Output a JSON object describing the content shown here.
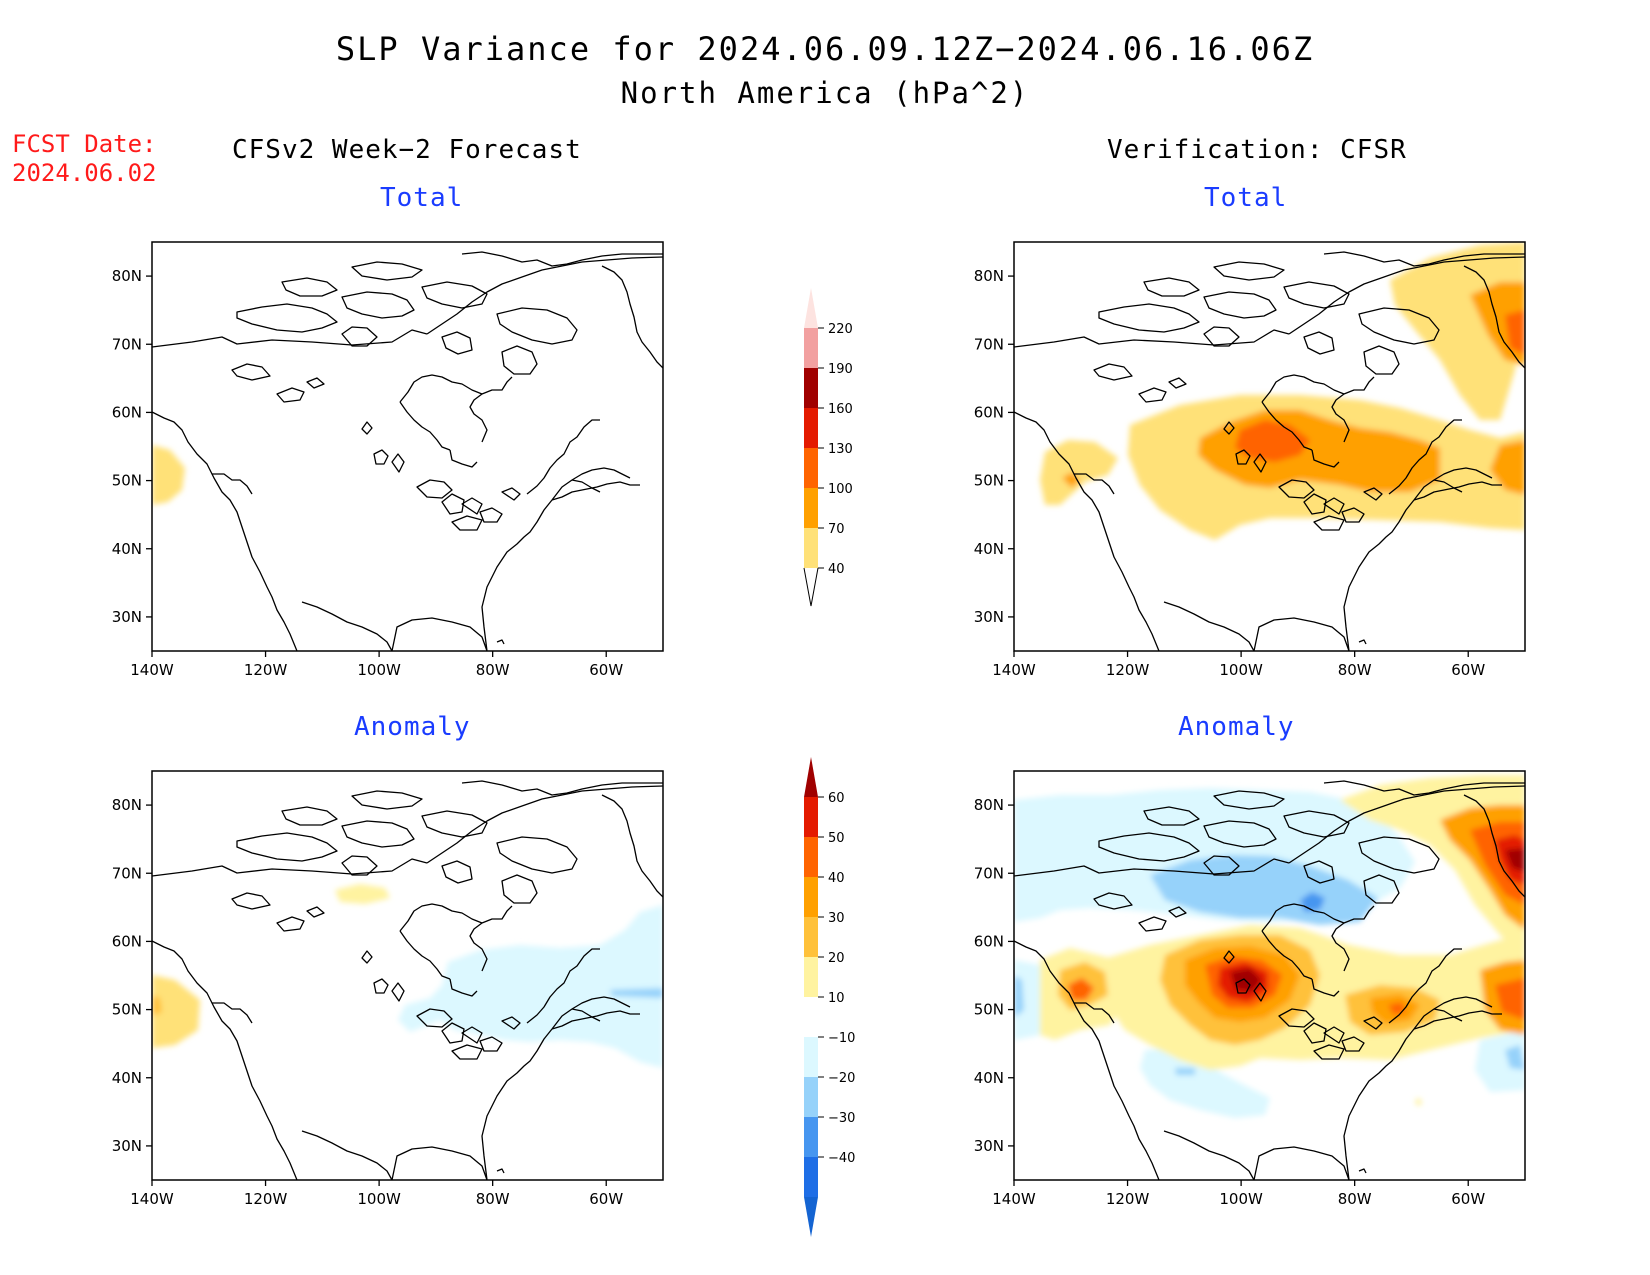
{
  "title": {
    "line1": "SLP Variance for 2024.06.09.12Z−2024.06.16.06Z",
    "line2": "North America (hPa^2)"
  },
  "fcst_date": {
    "label": "FCST Date:",
    "value": "2024.06.02"
  },
  "columns": {
    "left": "CFSv2 Week−2 Forecast",
    "right": "Verification: CFSR"
  },
  "panel_titles": {
    "total": "Total",
    "anomaly": "Anomaly"
  },
  "axes": {
    "lat_labels": [
      "80N",
      "70N",
      "60N",
      "50N",
      "40N",
      "30N"
    ],
    "lat_values": [
      80,
      70,
      60,
      50,
      40,
      30
    ],
    "lon_labels": [
      "140W",
      "120W",
      "100W",
      "80W",
      "60W"
    ],
    "lon_values": [
      -140,
      -120,
      -100,
      -80,
      -60
    ],
    "lat_range": [
      25,
      85
    ],
    "lon_range": [
      -140,
      -50
    ]
  },
  "colorbar_total": {
    "labels": [
      "220",
      "190",
      "160",
      "130",
      "100",
      "70",
      "40"
    ],
    "colors": [
      "#fde3e0",
      "#f2a0a0",
      "#a00000",
      "#e41a00",
      "#ff6400",
      "#ffa000",
      "#ffe178"
    ]
  },
  "colorbar_anomaly": {
    "labels": [
      "60",
      "50",
      "40",
      "30",
      "20",
      "10",
      "−10",
      "−20",
      "−30",
      "−40"
    ],
    "top_color": "#a00000",
    "colors": [
      "#e41a00",
      "#ff6400",
      "#ffa000",
      "#ffc13a",
      "#fff3a0",
      "#ffffff",
      "#dcf8ff",
      "#96d2fa",
      "#4696f0",
      "#1e6ee6"
    ],
    "bottom_color": "#1464d2"
  }
}
